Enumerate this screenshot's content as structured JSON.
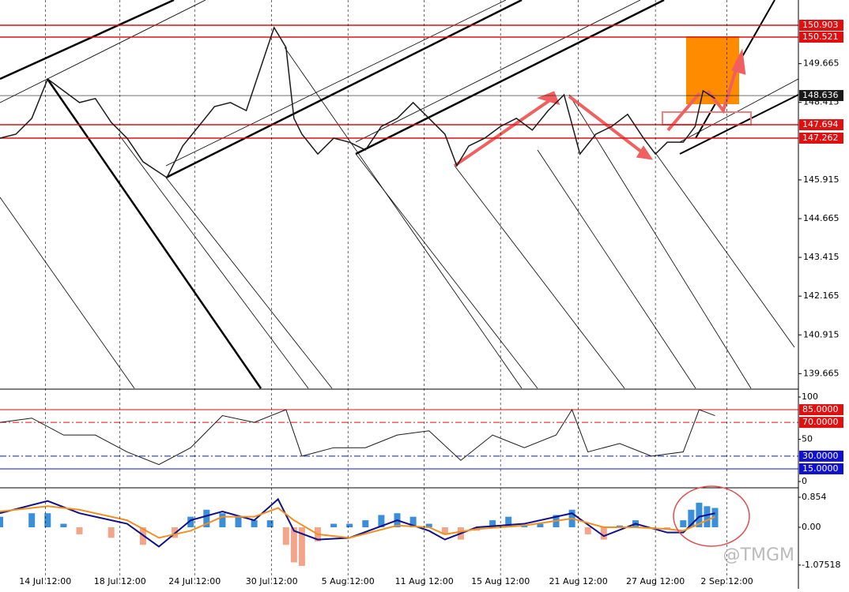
{
  "chart_data": {
    "type": "line",
    "watermark": "@TMGM",
    "x": [
      0,
      2,
      4,
      6,
      8,
      10,
      12,
      14,
      16,
      18,
      21,
      23,
      25,
      27,
      29,
      31,
      33,
      34.5,
      36,
      37,
      38,
      40,
      42,
      44,
      46,
      48,
      50,
      52,
      54,
      56,
      57.5,
      59,
      61,
      63,
      65,
      67,
      69,
      71,
      73,
      75,
      77,
      79,
      81,
      82.5,
      84,
      86,
      87.5,
      88.5,
      90
    ],
    "series": [
      {
        "color": "#1a1a1a",
        "values": [
          147.26,
          147.39,
          147.9,
          149.17,
          148.79,
          148.41,
          148.54,
          147.77,
          147.26,
          146.5,
          145.99,
          147.01,
          147.64,
          148.28,
          148.41,
          148.15,
          149.68,
          150.83,
          150.19,
          147.9,
          147.39,
          146.75,
          147.26,
          147.13,
          146.88,
          147.64,
          147.9,
          148.41,
          147.9,
          147.39,
          146.37,
          147.01,
          147.26,
          147.64,
          147.9,
          147.52,
          148.15,
          148.66,
          146.75,
          147.39,
          147.64,
          148.03,
          147.26,
          146.75,
          147.13,
          147.13,
          147.64,
          148.79,
          148.54
        ]
      }
    ],
    "xlim": [
      0,
      100
    ],
    "xticks": [
      {
        "value": 5.7,
        "label": "14 Jul 12:00"
      },
      {
        "value": 15.1,
        "label": "18 Jul 12:00"
      },
      {
        "value": 24.5,
        "label": "24 Jul 12:00"
      },
      {
        "value": 34.2,
        "label": "30 Jul 12:00"
      },
      {
        "value": 43.8,
        "label": "5 Aug 12:00"
      },
      {
        "value": 53.4,
        "label": "11 Aug 12:00"
      },
      {
        "value": 63,
        "label": "15 Aug 12:00"
      },
      {
        "value": 72.8,
        "label": "21 Aug 12:00"
      },
      {
        "value": 82.5,
        "label": "27 Aug 12:00"
      },
      {
        "value": 91.5,
        "label": "2 Sep 12:00"
      }
    ],
    "ylim": [
      139.19,
      151.718
    ],
    "yticks": [
      149.665,
      148.415,
      145.915,
      144.665,
      143.415,
      142.165,
      140.915,
      139.665
    ],
    "levels": [
      {
        "value": 150.903,
        "color": "#e01010"
      },
      {
        "value": 150.521,
        "color": "#e01010"
      },
      {
        "value": 148.636,
        "color": "#1a1a1a"
      },
      {
        "value": 147.694,
        "color": "#e01010"
      },
      {
        "value": 147.262,
        "color": "#e01010"
      }
    ],
    "oscillator": {
      "x": [
        0,
        4,
        8,
        12,
        16,
        20,
        24,
        28,
        32,
        36,
        38,
        42,
        46,
        50,
        54,
        58,
        62,
        66,
        70,
        72,
        74,
        78,
        82,
        86,
        88,
        90
      ],
      "values": [
        70,
        75,
        55,
        55,
        35,
        20,
        40,
        78,
        70,
        85,
        30,
        40,
        40,
        55,
        60,
        25,
        55,
        40,
        55,
        85,
        35,
        45,
        30,
        35,
        85,
        78
      ],
      "color": "#1a1a1a",
      "ylim": [
        -5.6,
        108.4
      ],
      "yticks": [
        100,
        50,
        0
      ],
      "levels": [
        {
          "value": 85,
          "label": "85.0000",
          "color": "#e01010"
        },
        {
          "value": 70,
          "label": "70.0000",
          "color": "#e01010"
        },
        {
          "value": 30,
          "label": "30.0000",
          "color": "#1010d0"
        },
        {
          "value": 15,
          "label": "15.0000",
          "color": "#1010d0"
        }
      ]
    },
    "macd": {
      "x": [
        0,
        4,
        6,
        8,
        10,
        14,
        18,
        22,
        24,
        26,
        28,
        30,
        32,
        34,
        36,
        37,
        38,
        40,
        42,
        44,
        46,
        48,
        50,
        52,
        54,
        56,
        58,
        60,
        62,
        64,
        66,
        68,
        70,
        72,
        74,
        76,
        78,
        80,
        82,
        84,
        86,
        87,
        88,
        89,
        90
      ],
      "values": [
        0.3,
        0.4,
        0.4,
        0.1,
        -0.2,
        -0.3,
        -0.5,
        -0.3,
        0.3,
        0.5,
        0.4,
        0.3,
        0.2,
        0.2,
        -0.5,
        -1.0,
        -1.1,
        -0.4,
        0.1,
        0.1,
        0.2,
        0.35,
        0.4,
        0.3,
        0.1,
        -0.2,
        -0.35,
        -0.1,
        0.2,
        0.3,
        0.05,
        0.1,
        0.35,
        0.5,
        -0.2,
        -0.35,
        0.05,
        0.2,
        -0.05,
        -0.05,
        0.2,
        0.5,
        0.7,
        0.6,
        0.55
      ],
      "colors": [
        "#3a8fd8",
        "#f2a58a"
      ],
      "lines": [
        {
          "color": "#10108a",
          "x": [
            0,
            6,
            10,
            16,
            20,
            24,
            28,
            32,
            35,
            37,
            40,
            44,
            50,
            54,
            56,
            60,
            66,
            72,
            76,
            80,
            84,
            86,
            88,
            90
          ],
          "values": [
            0.4,
            0.75,
            0.4,
            0.1,
            -0.55,
            0.2,
            0.45,
            0.2,
            0.8,
            -0.1,
            -0.35,
            -0.3,
            0.2,
            -0.1,
            -0.35,
            0,
            0.1,
            0.4,
            -0.25,
            0.1,
            -0.15,
            -0.15,
            0.3,
            0.4
          ]
        },
        {
          "color": "#f09020",
          "x": [
            0,
            6,
            10,
            16,
            20,
            24,
            28,
            32,
            35,
            37,
            40,
            44,
            50,
            54,
            56,
            60,
            66,
            72,
            76,
            80,
            84,
            86,
            88,
            90
          ],
          "values": [
            0.45,
            0.6,
            0.5,
            0.2,
            -0.3,
            -0.1,
            0.3,
            0.3,
            0.55,
            0.2,
            -0.2,
            -0.3,
            0.05,
            0,
            -0.2,
            -0.05,
            0.05,
            0.25,
            0,
            0,
            -0.05,
            -0.1,
            0.1,
            0.3
          ]
        }
      ],
      "ylim": [
        -1.618,
        1.079
      ],
      "yticks": [
        0.854,
        {
          "value": 0,
          "label": "0.00"
        },
        -1.07518
      ]
    }
  }
}
